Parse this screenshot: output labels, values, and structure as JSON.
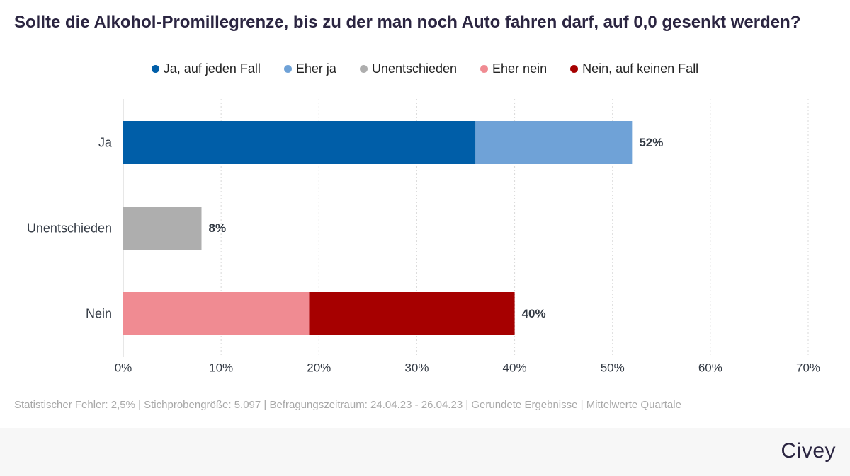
{
  "chart_data": {
    "type": "bar",
    "orientation": "horizontal",
    "stacked": true,
    "title": "Sollte die Alkohol-Promillegrenze, bis zu der man noch Auto fahren darf, auf 0,0 gesenkt werden?",
    "categories": [
      "Ja",
      "Unentschieden",
      "Nein"
    ],
    "series": [
      {
        "name": "Ja, auf jeden Fall",
        "color": "#005ea8",
        "values": [
          36,
          0,
          0
        ]
      },
      {
        "name": "Eher ja",
        "color": "#6fa2d7",
        "values": [
          16,
          0,
          0
        ]
      },
      {
        "name": "Unentschieden",
        "color": "#aeaeae",
        "values": [
          0,
          8,
          0
        ]
      },
      {
        "name": "Eher nein",
        "color": "#f08b92",
        "values": [
          0,
          0,
          19
        ]
      },
      {
        "name": "Nein, auf keinen Fall",
        "color": "#a60000",
        "values": [
          0,
          0,
          21
        ]
      }
    ],
    "totals": [
      52,
      8,
      40
    ],
    "value_labels": [
      "52%",
      "8%",
      "40%"
    ],
    "xlim": [
      0,
      70
    ],
    "xticks": [
      0,
      10,
      20,
      30,
      40,
      50,
      60,
      70
    ],
    "xtick_labels": [
      "0%",
      "10%",
      "20%",
      "30%",
      "40%",
      "50%",
      "60%",
      "70%"
    ],
    "xlabel": "",
    "ylabel": "",
    "grid": true,
    "legend_position": "top"
  },
  "footer": {
    "note": "Statistischer Fehler: 2,5% | Stichprobengröße: 5.097 | Befragungszeitraum: 24.04.23 - 26.04.23 | Gerundete Ergebnisse | Mittelwerte Quartale",
    "brand": "Civey"
  }
}
